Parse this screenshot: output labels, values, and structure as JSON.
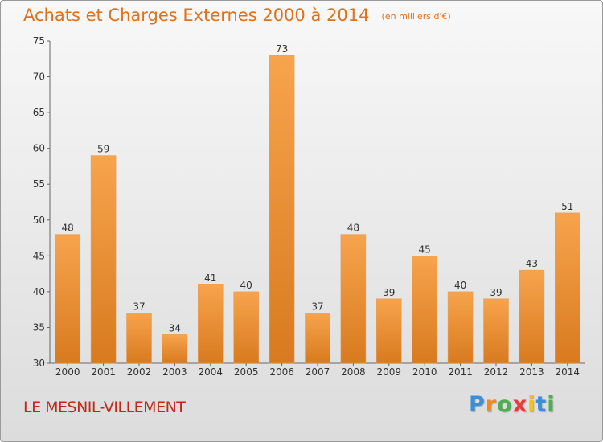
{
  "title": "Achats et Charges Externes 2000 à 2014",
  "unit": "(en milliers d'€)",
  "commune": "LE MESNIL-VILLEMENT",
  "brand": {
    "letters": [
      "P",
      "r",
      "o",
      "x",
      "i",
      "t",
      "i"
    ],
    "colors": [
      "#3a8fd6",
      "#f08a1c",
      "#4caf50",
      "#e83a3a",
      "#f2c21c",
      "#3a8fd6",
      "#4caf50"
    ]
  },
  "chart_data": {
    "type": "bar",
    "categories": [
      "2000",
      "2001",
      "2002",
      "2003",
      "2004",
      "2005",
      "2006",
      "2007",
      "2008",
      "2009",
      "2010",
      "2011",
      "2012",
      "2013",
      "2014"
    ],
    "values": [
      48,
      59,
      37,
      34,
      41,
      40,
      73,
      37,
      48,
      39,
      45,
      40,
      39,
      43,
      51
    ],
    "yticks": [
      30,
      35,
      40,
      45,
      50,
      55,
      60,
      65,
      70,
      75
    ],
    "ylim": [
      30,
      75
    ],
    "grid": false,
    "bar_color_top": "#f7a44d",
    "bar_color_bottom": "#d87a1f"
  }
}
